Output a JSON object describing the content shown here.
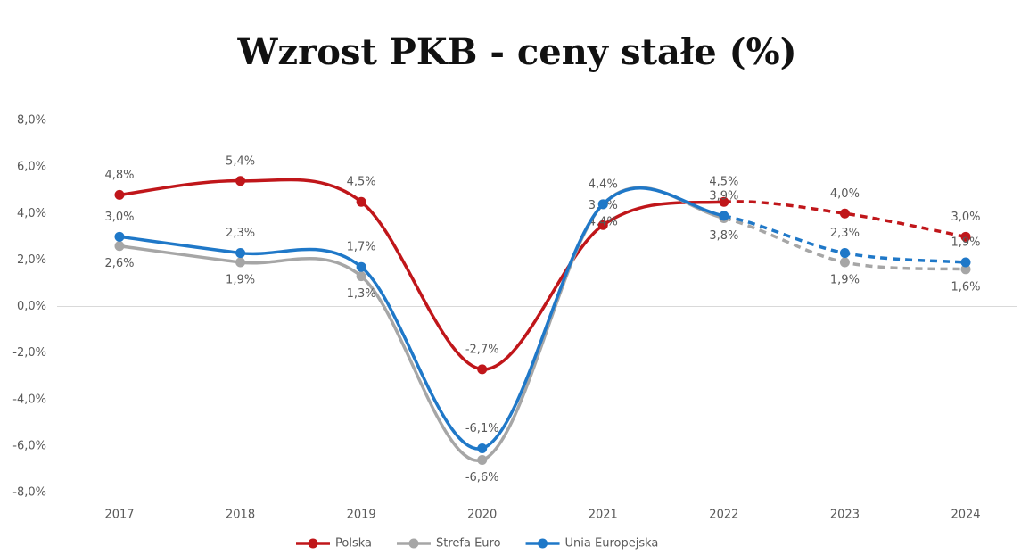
{
  "chart_data": {
    "type": "line",
    "title": "Wzrost PKB - ceny stałe (%)",
    "categories": [
      "2017",
      "2018",
      "2019",
      "2020",
      "2021",
      "2022",
      "2023",
      "2024"
    ],
    "dashed_from": "2022",
    "series": [
      {
        "name": "Polska",
        "color": "#c0161a",
        "values": [
          4.8,
          5.4,
          4.5,
          -2.7,
          3.5,
          4.5,
          4.0,
          3.0
        ],
        "value_labels": [
          "4,8%",
          "5,4%",
          "4,5%",
          "-2,7%",
          "3,5%",
          "4,5%",
          "4,0%",
          "3,0%"
        ]
      },
      {
        "name": "Strefa Euro",
        "color": "#a6a6a6",
        "values": [
          2.6,
          1.9,
          1.3,
          -6.6,
          4.4,
          3.8,
          1.9,
          1.6
        ],
        "value_labels": [
          "2,6%",
          "1,9%",
          "1,3%",
          "-6,6%",
          "4,4%",
          "3,8%",
          "1,9%",
          "1,6%"
        ]
      },
      {
        "name": "Unia Europejska",
        "color": "#1f78c8",
        "values": [
          3.0,
          2.3,
          1.7,
          -6.1,
          4.4,
          3.9,
          2.3,
          1.9
        ],
        "value_labels": [
          "3,0%",
          "2,3%",
          "1,7%",
          "-6,1%",
          "4,4%",
          "3,9%",
          "2,3%",
          "1,9%"
        ]
      }
    ],
    "ylim": [
      -8,
      8
    ],
    "yticks": [
      {
        "value": -8,
        "label": "-8,0%"
      },
      {
        "value": -6,
        "label": "-6,0%"
      },
      {
        "value": -4,
        "label": "-4,0%"
      },
      {
        "value": -2,
        "label": "-2,0%"
      },
      {
        "value": 0,
        "label": "0,0%"
      },
      {
        "value": 2,
        "label": "2,0%"
      },
      {
        "value": 4,
        "label": "4,0%"
      },
      {
        "value": 6,
        "label": "6,0%"
      },
      {
        "value": 8,
        "label": "8,0%"
      }
    ],
    "grid": false,
    "legend": "bottom"
  }
}
